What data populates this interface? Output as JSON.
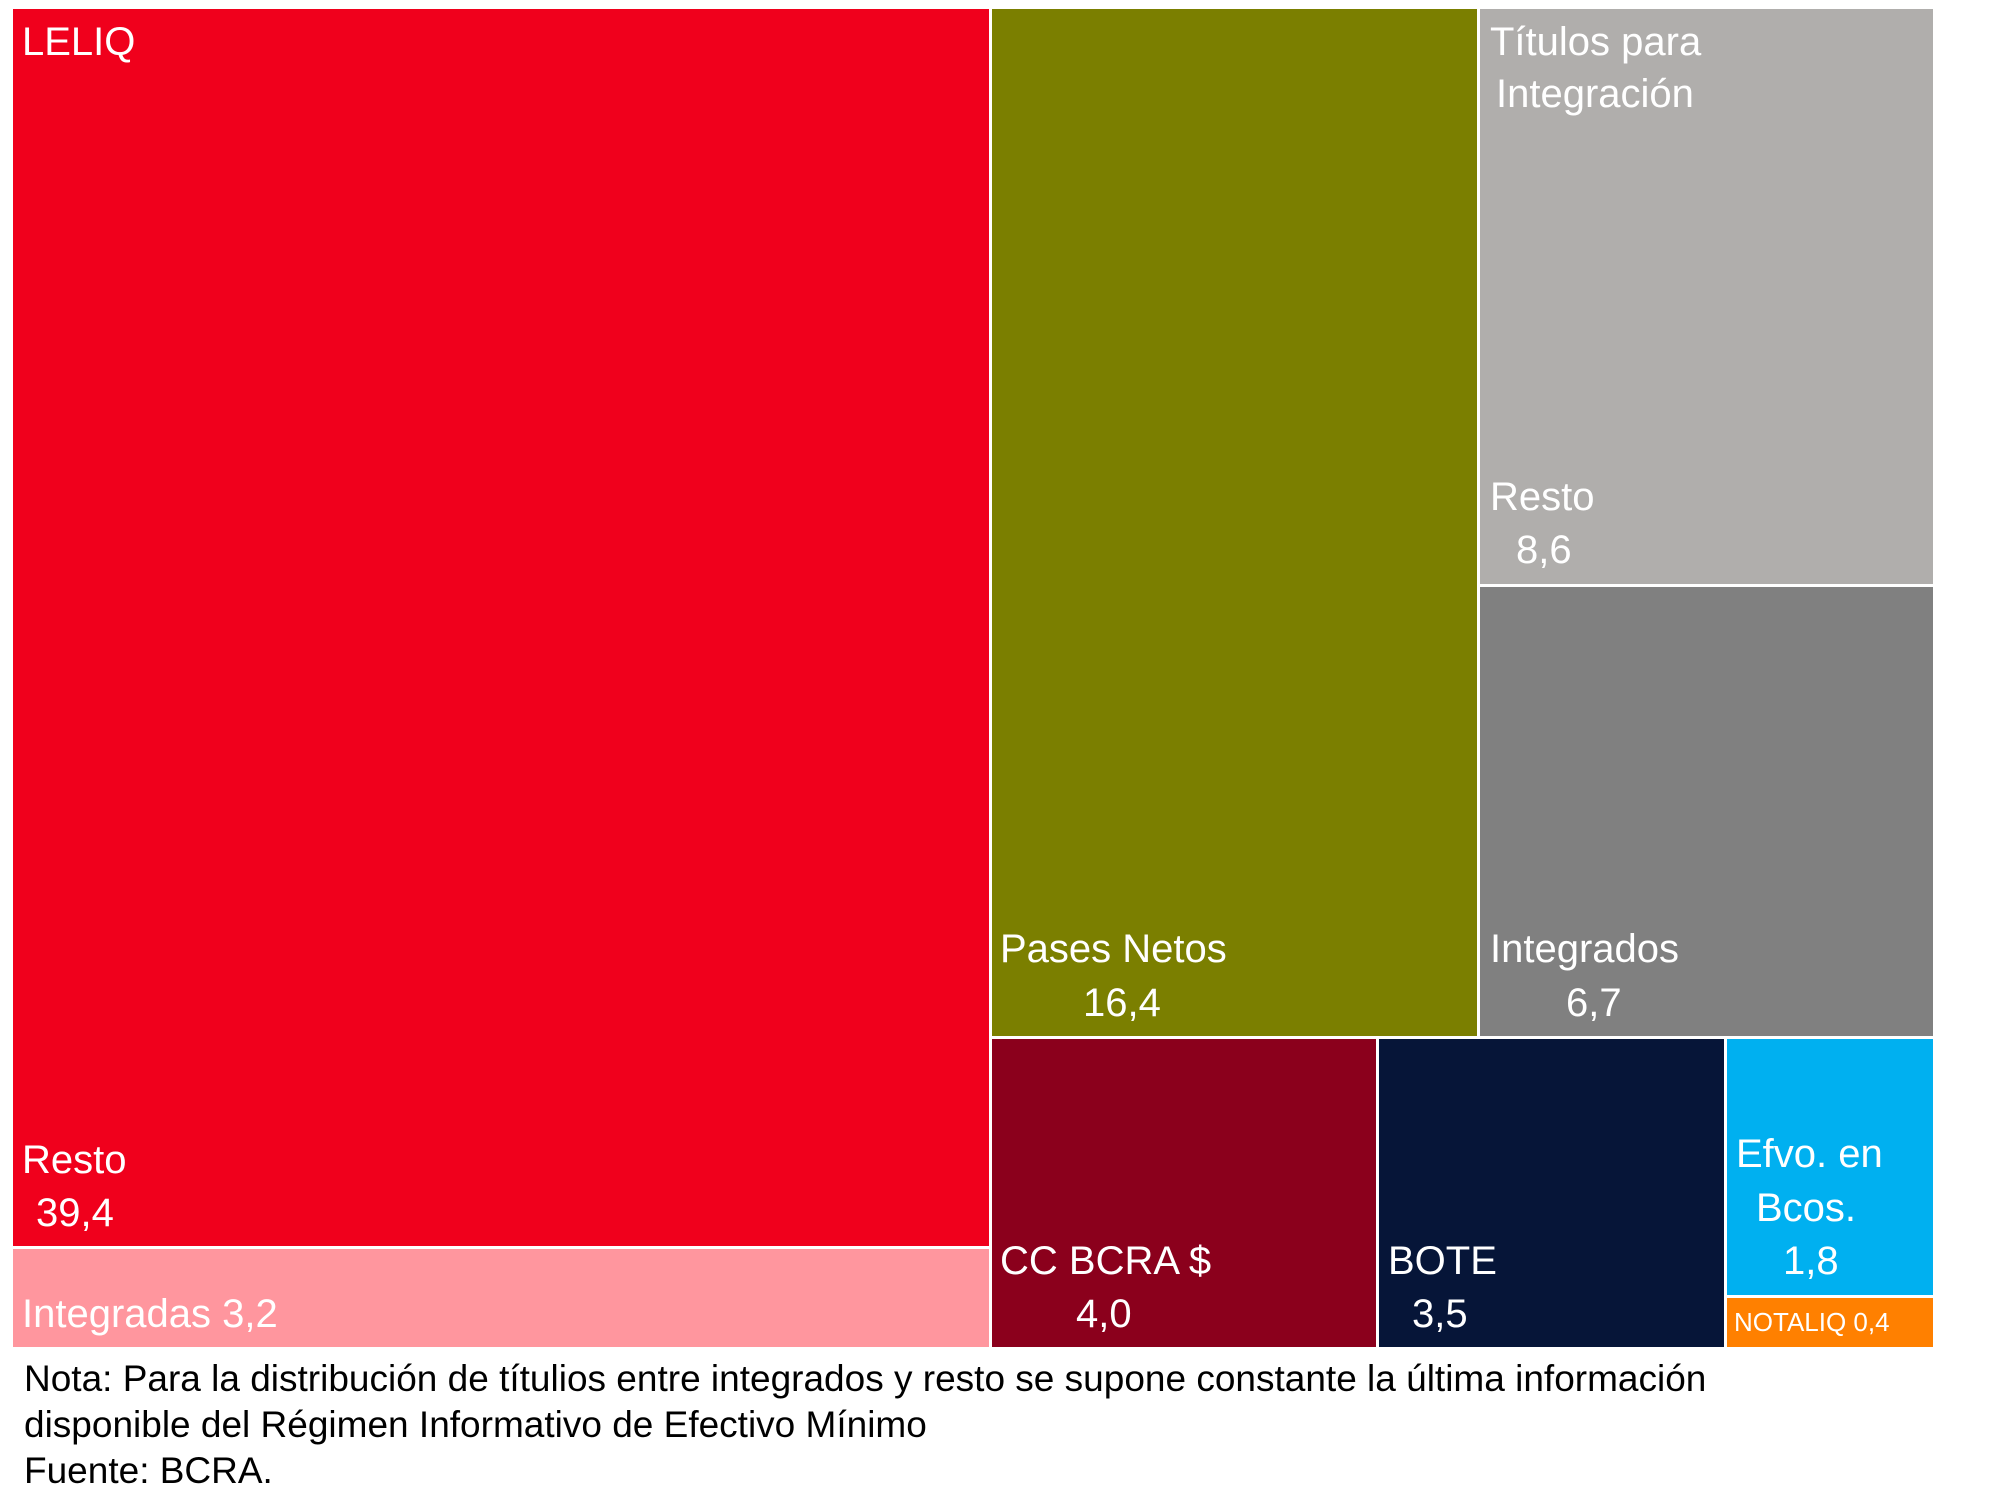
{
  "chart_data": {
    "type": "treemap",
    "groups": [
      {
        "name": "LELIQ",
        "color": "#f0001c",
        "items": [
          {
            "name": "Resto",
            "value": 39.4,
            "label": "39,4",
            "color": "#f0001c"
          },
          {
            "name": "Integradas",
            "value": 3.2,
            "label": "3,2",
            "color": "#ff969e"
          }
        ]
      },
      {
        "name": "Pases Netos",
        "value": 16.4,
        "label": "16,4",
        "color": "#7b7f00"
      },
      {
        "name": "Títulos para Integración",
        "color": "#b0aeac",
        "items": [
          {
            "name": "Resto",
            "value": 8.6,
            "label": "8,6",
            "color": "#b0aeac"
          },
          {
            "name": "Integrados",
            "value": 6.7,
            "label": "6,7",
            "color": "#808080"
          }
        ]
      },
      {
        "name": "CC BCRA $",
        "value": 4.0,
        "label": "4,0",
        "color": "#8b001c"
      },
      {
        "name": "BOTE",
        "value": 3.5,
        "label": "3,5",
        "color": "#061538"
      },
      {
        "name": "Efvo. en Bcos.",
        "value": 1.8,
        "label": "1,8",
        "color": "#00b0f0"
      },
      {
        "name": "NOTALIQ",
        "value": 0.4,
        "label": "0,4",
        "color": "#ff8000"
      }
    ]
  },
  "labels": {
    "leliq": "LELIQ",
    "leliq_resto_name": "Resto",
    "leliq_resto_value": "39,4",
    "integradas": "Integradas 3,2",
    "pases_name": "Pases Netos",
    "pases_value": "16,4",
    "titulos_line1": "Títulos para",
    "titulos_line2": "Integración",
    "titulos_resto_name": "Resto",
    "titulos_resto_value": "8,6",
    "integrados_name": "Integrados",
    "integrados_value": "6,7",
    "cc_name": "CC BCRA $",
    "cc_value": "4,0",
    "bote_name": "BOTE",
    "bote_value": "3,5",
    "efvo_line1": "Efvo. en",
    "efvo_line2": "Bcos.",
    "efvo_value": "1,8",
    "notaliq": "NOTALIQ 0,4"
  },
  "footer": {
    "nota_line1": "Nota: Para la distribución de títulios entre integrados y resto se supone constante la última información",
    "nota_line2": "disponible del Régimen Informativo de Efectivo Mínimo",
    "fuente": "Fuente: BCRA."
  }
}
